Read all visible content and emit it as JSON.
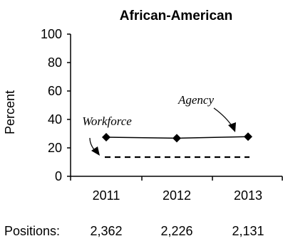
{
  "chart_data": {
    "type": "line",
    "title": "African-American",
    "ylabel": "Percent",
    "xlabel": "",
    "ylim": [
      0,
      100
    ],
    "yticks": [
      0,
      20,
      40,
      60,
      80,
      100
    ],
    "categories": [
      "2011",
      "2012",
      "2013"
    ],
    "grid": false,
    "series": [
      {
        "name": "Agency",
        "values": [
          27.5,
          26.8,
          27.9
        ],
        "style": "solid-diamond"
      },
      {
        "name": "Workforce",
        "values": [
          13.5,
          13.5,
          13.5
        ],
        "style": "dashed"
      }
    ],
    "annotations": {
      "agency": "Agency",
      "workforce": "Workforce"
    },
    "positions": {
      "label": "Positions:",
      "values": [
        "2,362",
        "2,226",
        "2,131"
      ]
    },
    "colors": {
      "line": "#000000"
    }
  }
}
